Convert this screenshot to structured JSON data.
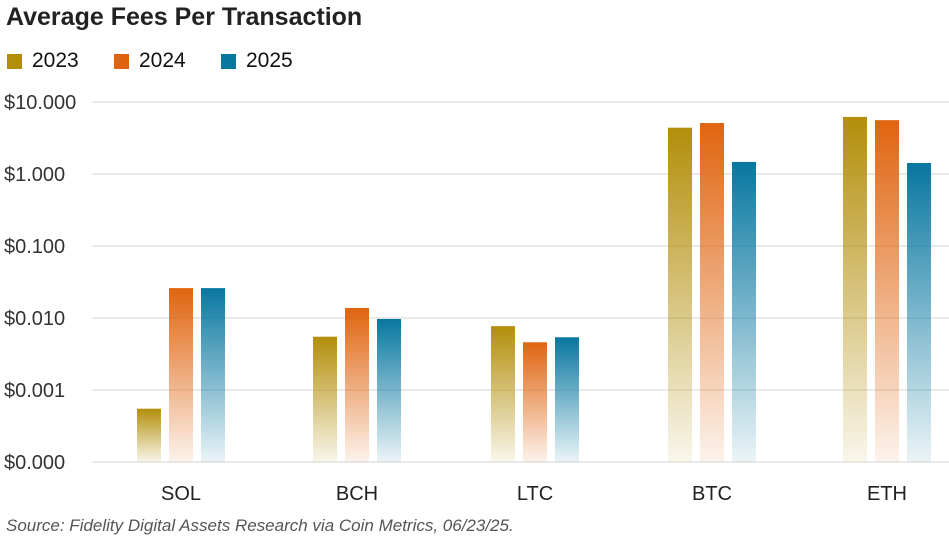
{
  "chart_data": {
    "type": "bar",
    "title": "Average Fees Per Transaction",
    "yscale": "log",
    "ylim": [
      0.0001,
      10
    ],
    "yticks": [
      0.0001,
      0.001,
      0.01,
      0.1,
      1,
      10
    ],
    "ytick_labels": [
      "$0.000",
      "$0.001",
      "$0.010",
      "$0.100",
      "$1.000",
      "$10.000"
    ],
    "categories": [
      "SOL",
      "BCH",
      "LTC",
      "BTC",
      "ETH"
    ],
    "series": [
      {
        "name": "2023",
        "color": "#B38E0A",
        "values": [
          0.00055,
          0.0055,
          0.0077,
          4.4,
          6.2
        ]
      },
      {
        "name": "2024",
        "color": "#E0640F",
        "values": [
          0.026,
          0.0138,
          0.0046,
          5.1,
          5.6
        ]
      },
      {
        "name": "2025",
        "color": "#0877A0",
        "values": [
          0.026,
          0.0097,
          0.0054,
          1.47,
          1.42
        ]
      }
    ],
    "legend_position": "top-left",
    "grid": true,
    "source": "Source: Fidelity Digital Assets Research via Coin Metrics, 06/23/25."
  }
}
